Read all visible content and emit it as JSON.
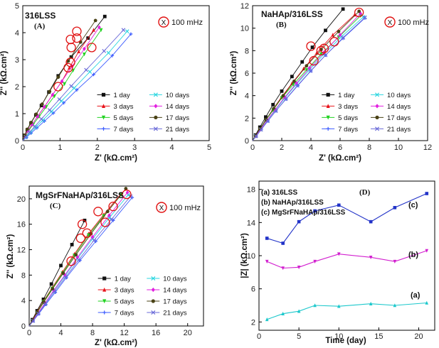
{
  "panels": [
    {
      "title": "316LSS",
      "label": "(A)",
      "annotation": "100 mHz",
      "annotation_symbol": "X",
      "xlabel": "Z' (kΩ.cm²)",
      "ylabel": "Z'' (kΩ.cm²)",
      "xticks": [
        "0",
        "1",
        "2",
        "3",
        "4",
        "5"
      ],
      "yticks": [
        "0",
        "1",
        "2",
        "3",
        "4",
        "5"
      ],
      "legend": [
        "1 day",
        "3 days",
        "5 days",
        "7 days",
        "10 days",
        "14 days",
        "17 days",
        "21 days"
      ]
    },
    {
      "title": "NaHAp/316LSS",
      "label": "(B)",
      "annotation": "100 mHz",
      "annotation_symbol": "X",
      "xlabel": "Z' (kΩ.cm²)",
      "ylabel": "Z'' (kΩ.cm²)",
      "xticks": [
        "0",
        "2",
        "4",
        "6",
        "8",
        "10",
        "12"
      ],
      "yticks": [
        "0",
        "2",
        "4",
        "6",
        "8",
        "10",
        "12"
      ],
      "legend": [
        "1 day",
        "3 days",
        "5 days",
        "7 days",
        "10 days",
        "14 days",
        "17 days",
        "21 days"
      ]
    },
    {
      "title": "MgSrFNaHAp/316LSS",
      "label": "(C)",
      "annotation": "100 mHz",
      "annotation_symbol": "X",
      "xlabel": "Z' (kΩ.cm²)",
      "ylabel": "Z'' (kΩ.cm²)",
      "xticks": [
        "0",
        "4",
        "8",
        "12",
        "16",
        "20"
      ],
      "yticks": [
        "0",
        "4",
        "8",
        "12",
        "16",
        "20"
      ],
      "legend": [
        "1 day",
        "3 days",
        "5 days",
        "7 days",
        "10 days",
        "14 days",
        "17 days",
        "21 days"
      ]
    },
    {
      "title": "",
      "label": "(D)",
      "xlabel": "Time (day)",
      "ylabel": "|Z| (kΩ.cm²)",
      "xticks": [
        "0",
        "5",
        "10",
        "15",
        "20"
      ],
      "yticks": [
        "2",
        "6",
        "10",
        "14",
        "18"
      ],
      "legend": [
        "(a) 316LSS",
        "(b) NaHAp/316LSS",
        "(c) MgSrFNaHAp/316LSS"
      ],
      "curve_labels": [
        "(a)",
        "(b)",
        "(c)"
      ]
    }
  ],
  "colors": {
    "series": [
      "#111111",
      "#e8141c",
      "#22d322",
      "#3b5bff",
      "#2ad6e0",
      "#e21fe0",
      "#4a4216",
      "#6a6ad8"
    ],
    "annotation_circle": "#e01010",
    "d_series": [
      "#1cc8cc",
      "#d21fcf",
      "#2233c8"
    ]
  },
  "chart_data": [
    {
      "type": "scatter",
      "title": "316LSS",
      "xlabel": "Z' (kΩ.cm²)",
      "ylabel": "Z'' (kΩ.cm²)",
      "xlim": [
        0,
        5
      ],
      "ylim": [
        0,
        5
      ],
      "series": [
        {
          "name": "1 day",
          "marker": "square",
          "x": [
            0,
            0.05,
            0.12,
            0.22,
            0.35,
            0.5,
            0.7,
            0.95,
            1.3,
            1.75,
            2.2
          ],
          "y": [
            0,
            0.2,
            0.4,
            0.65,
            0.95,
            1.3,
            1.8,
            2.4,
            3.1,
            3.8,
            4.6
          ]
        },
        {
          "name": "3 days",
          "marker": "triangle",
          "x": [
            0,
            0.06,
            0.14,
            0.25,
            0.4,
            0.58,
            0.8,
            1.05,
            1.25,
            1.5,
            1.9
          ],
          "y": [
            0,
            0.18,
            0.38,
            0.6,
            0.9,
            1.25,
            1.7,
            2.2,
            2.7,
            3.3,
            4.1
          ]
        },
        {
          "name": "5 days",
          "marker": "triangle-down",
          "x": [
            0,
            0.07,
            0.16,
            0.28,
            0.44,
            0.63,
            0.85,
            1.12,
            1.35,
            1.65,
            2.1
          ],
          "y": [
            0,
            0.18,
            0.38,
            0.6,
            0.9,
            1.25,
            1.65,
            2.1,
            2.6,
            3.2,
            4.1
          ]
        },
        {
          "name": "7 days",
          "marker": "plus",
          "x": [
            0,
            0.1,
            0.22,
            0.38,
            0.58,
            0.82,
            1.1,
            1.45,
            1.9,
            2.4,
            2.9
          ],
          "y": [
            0,
            0.12,
            0.28,
            0.47,
            0.72,
            1.02,
            1.4,
            1.88,
            2.45,
            3.15,
            3.95
          ]
        },
        {
          "name": "10 days",
          "marker": "x",
          "x": [
            0,
            0.09,
            0.2,
            0.35,
            0.54,
            0.77,
            1.04,
            1.38,
            1.8,
            2.3,
            2.8
          ],
          "y": [
            0,
            0.13,
            0.3,
            0.5,
            0.76,
            1.08,
            1.47,
            1.95,
            2.55,
            3.25,
            4.05
          ]
        },
        {
          "name": "14 days",
          "marker": "diamond",
          "x": [
            0,
            0.06,
            0.14,
            0.25,
            0.4,
            0.58,
            0.8,
            1.05,
            1.32,
            1.65,
            2.05
          ],
          "y": [
            0,
            0.17,
            0.37,
            0.6,
            0.9,
            1.25,
            1.7,
            2.2,
            2.75,
            3.4,
            4.2
          ]
        },
        {
          "name": "17 days",
          "marker": "circle",
          "x": [
            0,
            0.05,
            0.12,
            0.22,
            0.36,
            0.52,
            0.72,
            0.95,
            1.22,
            1.55,
            1.95
          ],
          "y": [
            0,
            0.2,
            0.42,
            0.67,
            0.98,
            1.35,
            1.82,
            2.35,
            2.95,
            3.65,
            4.45
          ]
        },
        {
          "name": "21 days",
          "marker": "x",
          "x": [
            0,
            0.08,
            0.18,
            0.32,
            0.5,
            0.72,
            0.98,
            1.3,
            1.7,
            2.18,
            2.7
          ],
          "y": [
            0,
            0.14,
            0.31,
            0.52,
            0.8,
            1.13,
            1.53,
            2.02,
            2.62,
            3.32,
            4.1
          ]
        }
      ],
      "annotations_100mHz": [
        {
          "x": 0.95,
          "y": 2.0
        },
        {
          "x": 1.22,
          "y": 2.7
        },
        {
          "x": 1.28,
          "y": 2.9
        },
        {
          "x": 1.85,
          "y": 3.45
        },
        {
          "x": 1.3,
          "y": 3.45
        },
        {
          "x": 1.28,
          "y": 3.75
        },
        {
          "x": 1.45,
          "y": 3.8
        },
        {
          "x": 1.45,
          "y": 4.05
        }
      ]
    },
    {
      "type": "scatter",
      "title": "NaHAp/316LSS",
      "xlabel": "Z' (kΩ.cm²)",
      "ylabel": "Z'' (kΩ.cm²)",
      "xlim": [
        0,
        12
      ],
      "ylim": [
        0,
        12
      ],
      "series": [
        {
          "name": "1 day",
          "marker": "square",
          "x": [
            0,
            0.2,
            0.5,
            0.9,
            1.4,
            2.0,
            2.7,
            3.4,
            4.1,
            5.0,
            6.2
          ],
          "y": [
            0,
            0.5,
            1.2,
            2.1,
            3.2,
            4.4,
            5.7,
            7.0,
            8.3,
            9.8,
            11.7
          ]
        },
        {
          "name": "3 days",
          "marker": "triangle",
          "x": [
            0,
            0.2,
            0.5,
            0.9,
            1.4,
            2.0,
            2.7,
            3.5,
            4.4,
            5.5,
            7.0
          ],
          "y": [
            0,
            0.4,
            1.0,
            1.8,
            2.8,
            3.9,
            5.1,
            6.4,
            7.8,
            9.4,
            11.2
          ]
        },
        {
          "name": "5 days",
          "marker": "triangle-down",
          "x": [
            0,
            0.2,
            0.5,
            0.9,
            1.4,
            2.0,
            2.8,
            3.7,
            4.7,
            5.9,
            7.4
          ],
          "y": [
            0,
            0.4,
            1.0,
            1.8,
            2.7,
            3.8,
            5.0,
            6.3,
            7.7,
            9.2,
            11.1
          ]
        },
        {
          "name": "7 days",
          "marker": "plus",
          "x": [
            0,
            0.25,
            0.6,
            1.05,
            1.6,
            2.3,
            3.1,
            4.0,
            5.0,
            6.2,
            7.7
          ],
          "y": [
            0,
            0.4,
            1.0,
            1.75,
            2.65,
            3.7,
            4.9,
            6.2,
            7.6,
            9.1,
            10.9
          ]
        },
        {
          "name": "10 days",
          "marker": "x",
          "x": [
            0,
            0.22,
            0.55,
            1.0,
            1.55,
            2.2,
            3.0,
            3.9,
            4.9,
            6.1,
            7.6
          ],
          "y": [
            0,
            0.4,
            1.0,
            1.78,
            2.7,
            3.78,
            5.0,
            6.3,
            7.7,
            9.25,
            11.0
          ]
        },
        {
          "name": "14 days",
          "marker": "diamond",
          "x": [
            0,
            0.22,
            0.55,
            1.0,
            1.55,
            2.2,
            3.0,
            3.9,
            4.9,
            6.0,
            7.4
          ],
          "y": [
            0,
            0.42,
            1.02,
            1.82,
            2.76,
            3.86,
            5.1,
            6.45,
            7.85,
            9.4,
            11.3
          ]
        },
        {
          "name": "17 days",
          "marker": "circle",
          "x": [
            0,
            0.2,
            0.5,
            0.92,
            1.45,
            2.1,
            2.85,
            3.7,
            4.7,
            5.9,
            7.3
          ],
          "y": [
            0,
            0.44,
            1.06,
            1.88,
            2.86,
            4.0,
            5.28,
            6.65,
            8.1,
            9.7,
            11.5
          ]
        },
        {
          "name": "21 days",
          "marker": "x",
          "x": [
            0,
            0.24,
            0.58,
            1.04,
            1.6,
            2.28,
            3.08,
            3.98,
            5.0,
            6.2,
            7.7
          ],
          "y": [
            0,
            0.4,
            0.98,
            1.74,
            2.64,
            3.7,
            4.9,
            6.2,
            7.6,
            9.15,
            10.95
          ]
        }
      ],
      "annotations_100mHz": [
        {
          "x": 4.0,
          "y": 8.4
        },
        {
          "x": 4.2,
          "y": 7.1
        },
        {
          "x": 4.7,
          "y": 8.0
        },
        {
          "x": 4.9,
          "y": 8.2
        },
        {
          "x": 5.6,
          "y": 8.8
        },
        {
          "x": 7.3,
          "y": 11.4
        }
      ]
    },
    {
      "type": "scatter",
      "title": "MgSrFNaHAp/316LSS",
      "xlabel": "Z' (kΩ.cm²)",
      "ylabel": "Z'' (kΩ.cm²)",
      "xlim": [
        0,
        22
      ],
      "ylim": [
        0,
        22
      ],
      "series": [
        {
          "name": "1 day",
          "marker": "square",
          "x": [
            0,
            0.4,
            1.0,
            1.8,
            2.8,
            4.0,
            5.4,
            7.0
          ],
          "y": [
            0,
            1.0,
            2.4,
            4.2,
            6.6,
            9.5,
            12.8,
            16.6
          ]
        },
        {
          "name": "3 days",
          "marker": "triangle",
          "x": [
            0,
            0.4,
            1.0,
            1.8,
            2.9,
            4.2,
            5.7,
            7.5,
            9.4,
            11.6
          ],
          "y": [
            0,
            0.9,
            2.2,
            3.9,
            6.0,
            8.5,
            11.3,
            14.5,
            17.5,
            20.8
          ]
        },
        {
          "name": "5 days",
          "marker": "triangle-down",
          "x": [
            0,
            0.4,
            1.0,
            1.8,
            2.9,
            4.2,
            5.7,
            7.5,
            9.4,
            11.6
          ],
          "y": [
            0,
            0.85,
            2.1,
            3.8,
            5.9,
            8.3,
            11.1,
            14.3,
            17.3,
            20.6
          ]
        },
        {
          "name": "7 days",
          "marker": "plus",
          "x": [
            0,
            0.5,
            1.2,
            2.1,
            3.3,
            4.7,
            6.4,
            8.4,
            10.6,
            13.0
          ],
          "y": [
            0,
            0.8,
            1.9,
            3.4,
            5.3,
            7.6,
            10.3,
            13.3,
            16.6,
            20.2
          ]
        },
        {
          "name": "10 days",
          "marker": "x",
          "x": [
            0,
            0.45,
            1.1,
            2.0,
            3.1,
            4.5,
            6.1,
            8.0,
            10.1,
            12.5
          ],
          "y": [
            0,
            0.82,
            2.0,
            3.55,
            5.5,
            7.85,
            10.6,
            13.7,
            17.0,
            20.6
          ]
        },
        {
          "name": "14 days",
          "marker": "diamond",
          "x": [
            0,
            0.45,
            1.1,
            2.0,
            3.1,
            4.5,
            6.1,
            8.0,
            10.1,
            12.4
          ],
          "y": [
            0,
            0.84,
            2.02,
            3.6,
            5.6,
            8.0,
            10.8,
            14.0,
            17.4,
            21.0
          ]
        },
        {
          "name": "17 days",
          "marker": "circle",
          "x": [
            0,
            0.4,
            1.0,
            1.85,
            2.95,
            4.3,
            5.9,
            7.8,
            9.9,
            12.2
          ],
          "y": [
            0,
            0.88,
            2.12,
            3.75,
            5.85,
            8.3,
            11.2,
            14.5,
            18.0,
            21.6
          ]
        },
        {
          "name": "21 days",
          "marker": "x",
          "x": [
            0,
            0.5,
            1.15,
            2.05,
            3.2,
            4.6,
            6.25,
            8.2,
            10.4,
            12.8
          ],
          "y": [
            0,
            0.8,
            1.95,
            3.45,
            5.4,
            7.7,
            10.4,
            13.5,
            16.8,
            20.4
          ]
        }
      ],
      "annotations_100mHz": [
        {
          "x": 5.3,
          "y": 10.2
        },
        {
          "x": 6.5,
          "y": 13.8
        },
        {
          "x": 6.7,
          "y": 16.0
        },
        {
          "x": 7.3,
          "y": 14.6
        },
        {
          "x": 8.7,
          "y": 18.0
        },
        {
          "x": 9.6,
          "y": 16.3
        },
        {
          "x": 10.6,
          "y": 18.8
        },
        {
          "x": 12.3,
          "y": 20.7
        }
      ]
    },
    {
      "type": "line",
      "title": "",
      "xlabel": "Time (day)",
      "ylabel": "|Z| (kΩ.cm²)",
      "xlim": [
        0,
        22
      ],
      "ylim": [
        1,
        19
      ],
      "series": [
        {
          "name": "(a) 316LSS",
          "marker": "triangle",
          "x": [
            1,
            3,
            5,
            7,
            10,
            14,
            17,
            21
          ],
          "values": [
            2.3,
            3.0,
            3.3,
            4.0,
            3.9,
            4.2,
            4.0,
            4.3
          ]
        },
        {
          "name": "(b) NaHAp/316LSS",
          "marker": "triangle-down",
          "x": [
            1,
            3,
            5,
            7,
            10,
            14,
            17,
            21
          ],
          "values": [
            9.3,
            8.5,
            8.6,
            9.3,
            10.2,
            9.8,
            9.3,
            10.6
          ]
        },
        {
          "name": "(c) MgSrFNaHAp/316LSS",
          "marker": "square",
          "x": [
            1,
            3,
            5,
            7,
            10,
            14,
            17,
            21
          ],
          "values": [
            12.1,
            11.5,
            14.1,
            15.4,
            16.1,
            14.1,
            15.8,
            17.5
          ]
        }
      ]
    }
  ]
}
